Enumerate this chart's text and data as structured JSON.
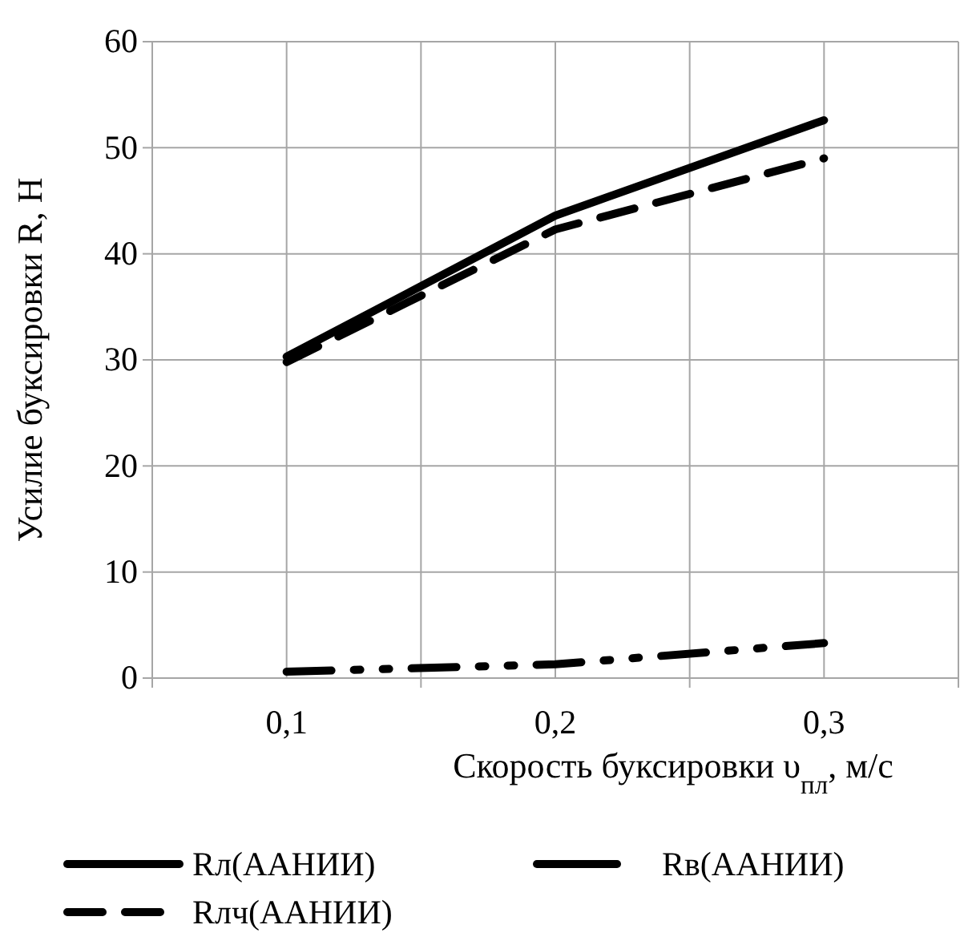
{
  "chart_data": {
    "type": "line",
    "xlabel": "Скорость буксировки υ$_{пл}$, м/с",
    "ylabel": "Усилие буксировки R, Н",
    "x": [
      0.1,
      0.2,
      0.3
    ],
    "series": [
      {
        "name": "Rл(ААНИИ)",
        "color": "#000000",
        "values": [
          30.3,
          43.6,
          52.6
        ],
        "line_style": "solid"
      },
      {
        "name": "Rв(ААНИИ)",
        "color": "#000000",
        "values": [
          0.6,
          1.3,
          3.3
        ],
        "line_style": "dotted"
      },
      {
        "name": "Rлч(ААНИИ)",
        "color": "#000000",
        "values": [
          29.8,
          42.3,
          49.0
        ],
        "line_style": "dashed"
      }
    ],
    "xlim": [
      0.05,
      0.35
    ],
    "xticks": [
      {
        "value": 0.05,
        "label": null
      },
      {
        "value": 0.1,
        "label": "0,1"
      },
      {
        "value": 0.15,
        "label": null
      },
      {
        "value": 0.2,
        "label": "0,2"
      },
      {
        "value": 0.25,
        "label": null
      },
      {
        "value": 0.3,
        "label": "0,3"
      },
      {
        "value": 0.35,
        "label": null
      }
    ],
    "ylim": [
      0,
      60
    ],
    "yticks": [
      0,
      10,
      20,
      30,
      40,
      50,
      60
    ],
    "grid": true,
    "legend": "bottom",
    "marker": "none"
  }
}
